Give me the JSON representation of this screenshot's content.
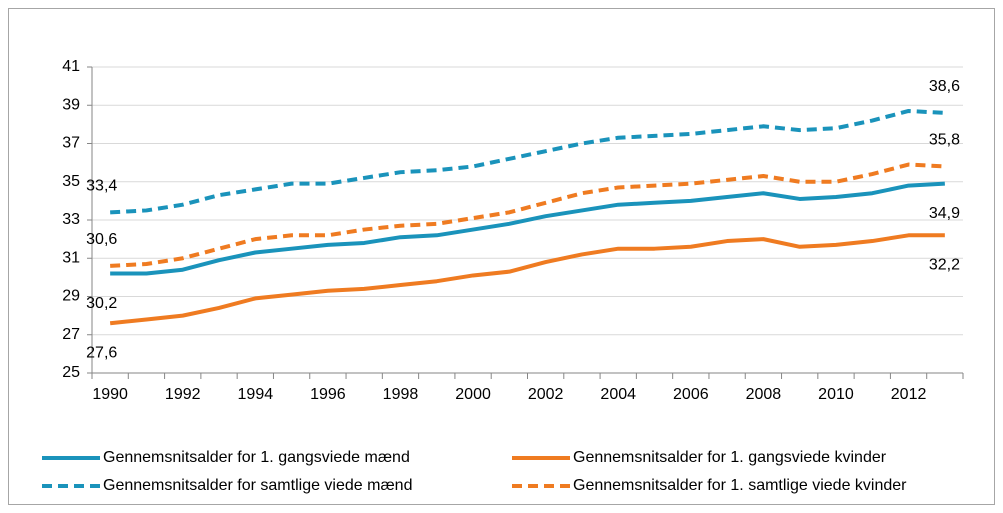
{
  "chart_data": {
    "type": "line",
    "categories": [
      1990,
      null,
      1992,
      null,
      1994,
      null,
      1996,
      null,
      1998,
      null,
      2000,
      null,
      2002,
      null,
      2004,
      null,
      2006,
      null,
      2008,
      null,
      2010,
      null,
      2012,
      null
    ],
    "ylim": [
      25,
      41
    ],
    "yticks": [
      25,
      27,
      29,
      31,
      33,
      35,
      37,
      39,
      41
    ],
    "grid": true,
    "legend": "bottom",
    "series": [
      {
        "name": "Gennemsnitsalder for 1. gangsviede mænd",
        "color": "#1a93bb",
        "dash": false,
        "values": [
          30.2,
          30.2,
          30.4,
          30.9,
          31.3,
          31.5,
          31.7,
          31.8,
          32.1,
          32.2,
          32.5,
          32.8,
          33.2,
          33.5,
          33.8,
          33.9,
          34.0,
          34.2,
          34.4,
          34.1,
          34.2,
          34.4,
          34.8,
          34.9
        ],
        "value_labels": [
          "30,2",
          null,
          null,
          null,
          null,
          null,
          null,
          null,
          null,
          null,
          null,
          null,
          null,
          null,
          null,
          null,
          null,
          null,
          null,
          null,
          null,
          null,
          null,
          "34,9"
        ]
      },
      {
        "name": "Gennemsnitsalder for 1. gangsviede kvinder",
        "color": "#ef7b21",
        "dash": false,
        "values": [
          27.6,
          27.8,
          28.0,
          28.4,
          28.9,
          29.1,
          29.3,
          29.4,
          29.6,
          29.8,
          30.1,
          30.3,
          30.8,
          31.2,
          31.5,
          31.5,
          31.6,
          31.9,
          32.0,
          31.6,
          31.7,
          31.9,
          32.2,
          32.2
        ],
        "value_labels": [
          "27,6",
          null,
          null,
          null,
          null,
          null,
          null,
          null,
          null,
          null,
          null,
          null,
          null,
          null,
          null,
          null,
          null,
          null,
          null,
          null,
          null,
          null,
          null,
          "32,2"
        ]
      },
      {
        "name": "Gennemsnitsalder for samtlige viede mænd",
        "color": "#1a93bb",
        "dash": true,
        "values": [
          33.4,
          33.5,
          33.8,
          34.3,
          34.6,
          34.9,
          34.9,
          35.2,
          35.5,
          35.6,
          35.8,
          36.2,
          36.6,
          37.0,
          37.3,
          37.4,
          37.5,
          37.7,
          37.9,
          37.7,
          37.8,
          38.2,
          38.7,
          38.6
        ],
        "value_labels": [
          "33,4",
          null,
          null,
          null,
          null,
          null,
          null,
          null,
          null,
          null,
          null,
          null,
          null,
          null,
          null,
          null,
          null,
          null,
          null,
          null,
          null,
          null,
          null,
          "38,6"
        ]
      },
      {
        "name": "Gennemsnitsalder for 1. samtlige viede kvinder",
        "color": "#ef7b21",
        "dash": true,
        "values": [
          30.6,
          30.7,
          31.0,
          31.5,
          32.0,
          32.2,
          32.2,
          32.5,
          32.7,
          32.8,
          33.1,
          33.4,
          33.9,
          34.4,
          34.7,
          34.8,
          34.9,
          35.1,
          35.3,
          35.0,
          35.0,
          35.4,
          35.9,
          35.8
        ],
        "value_labels": [
          "30,6",
          null,
          null,
          null,
          null,
          null,
          null,
          null,
          null,
          null,
          null,
          null,
          null,
          null,
          null,
          null,
          null,
          null,
          null,
          null,
          null,
          null,
          null,
          "35,8"
        ]
      }
    ]
  }
}
